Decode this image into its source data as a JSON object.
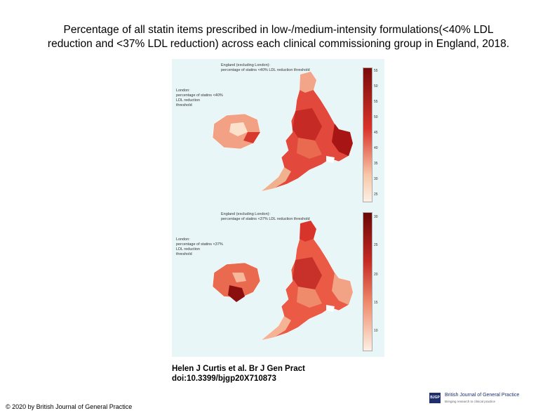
{
  "title": {
    "line1": "Percentage of all statin items prescribed in low-/medium-intensity formulations(<40% LDL",
    "line2": "reduction and <37% LDL reduction) across each clinical commissioning group in England, 2018."
  },
  "maps": [
    {
      "england_title_1": "England (excluding London):",
      "england_title_2": "percentage of statins <40% LDL reduction threshold",
      "london_title_1": "London:",
      "london_title_2": "percentage of statins <40% LDL reduction",
      "london_title_3": "threshold",
      "scale_ticks": [
        "55",
        "50",
        "55",
        "50",
        "45",
        "40",
        "35",
        "30",
        "25"
      ]
    },
    {
      "england_title_1": "England (excluding London):",
      "england_title_2": "percentage of statins <37% LDL reduction threshold",
      "london_title_1": "London:",
      "london_title_2": "percentage of statins <37% LDL reduction",
      "london_title_3": "threshold",
      "scale_ticks": [
        "30",
        "25",
        "20",
        "15",
        "10"
      ]
    }
  ],
  "citation": {
    "line1": "Helen J Curtis et al. Br J Gen Pract",
    "line2": "doi:10.3399/bjgp20X710873"
  },
  "copyright": "© 2020 by British Journal of General Practice",
  "logo": {
    "mark": "BJGP",
    "name": "British Journal of General Practice",
    "tagline": "Bringing research to clinical practice"
  },
  "colors": {
    "dark": "#7a0b0b",
    "mid": "#d9342b",
    "light": "#f7c7a8",
    "pale": "#fde8d8"
  }
}
